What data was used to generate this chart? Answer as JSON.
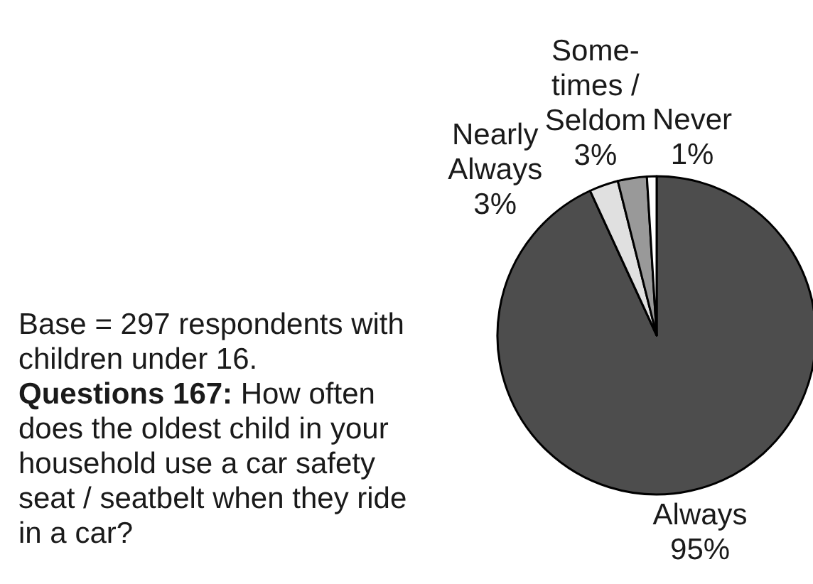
{
  "chart_data": {
    "type": "pie",
    "categories": [
      "Always",
      "Nearly\nAlways",
      "Some-\ntimes /\nSeldom",
      "Never"
    ],
    "values": [
      95,
      3,
      3,
      1
    ],
    "colors": [
      "#4d4d4d",
      "#e0e0e0",
      "#999999",
      "#ffffff"
    ],
    "value_labels": [
      "95%",
      "3%",
      "3%",
      "1%"
    ],
    "annotations": [
      "Base = 297 respondents with\nchildren under 16.",
      "Questions 167: How often\ndoes the oldest child in your\nhousehold use a car safety\nseat / seatbelt when they ride\nin a car?"
    ]
  }
}
